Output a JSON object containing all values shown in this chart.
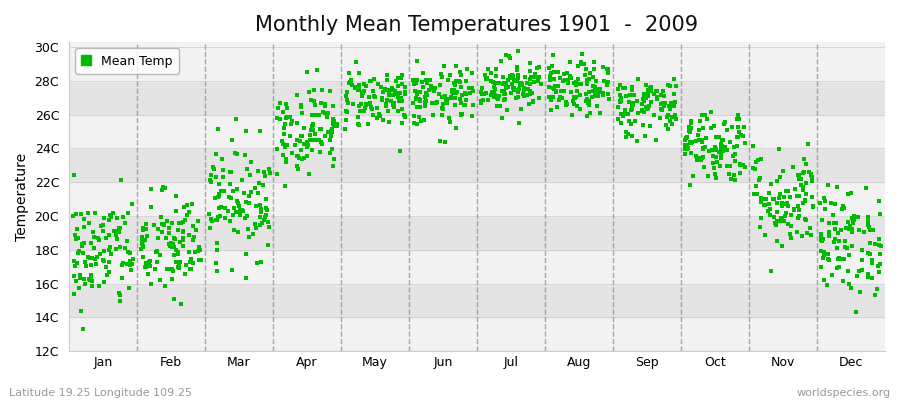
{
  "title": "Monthly Mean Temperatures 1901  -  2009",
  "ylabel": "Temperature",
  "xlabel_labels": [
    "Jan",
    "Feb",
    "Mar",
    "Apr",
    "May",
    "Jun",
    "Jul",
    "Aug",
    "Sep",
    "Oct",
    "Nov",
    "Dec"
  ],
  "ytick_labels": [
    "12C",
    "14C",
    "16C",
    "18C",
    "20C",
    "22C",
    "24C",
    "26C",
    "28C",
    "30C"
  ],
  "ytick_values": [
    12,
    14,
    16,
    18,
    20,
    22,
    24,
    26,
    28,
    30
  ],
  "ylim": [
    12,
    30
  ],
  "dot_color": "#00bb00",
  "bg_color": "#ffffff",
  "band_light": "#f2f2f2",
  "band_dark": "#e4e4e4",
  "dashed_line_color": "#999999",
  "legend_label": "Mean Temp",
  "footer_left": "Latitude 19.25 Longitude 109.25",
  "footer_right": "worldspecies.org",
  "title_fontsize": 15,
  "label_fontsize": 10,
  "tick_fontsize": 9,
  "monthly_means": [
    17.8,
    18.2,
    21.0,
    25.2,
    27.0,
    27.0,
    27.8,
    27.5,
    26.5,
    24.2,
    21.0,
    18.5
  ],
  "monthly_stds": [
    1.7,
    1.6,
    1.7,
    1.3,
    0.9,
    0.9,
    0.8,
    0.8,
    0.9,
    1.1,
    1.5,
    1.6
  ],
  "n_years": 109
}
